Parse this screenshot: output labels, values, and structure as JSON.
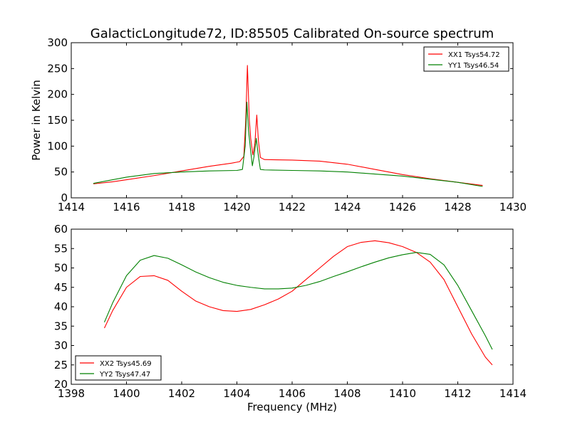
{
  "figure": {
    "title": "GalacticLongitude72, ID:85505 Calibrated On-source spectrum"
  },
  "chart_data": [
    {
      "type": "line",
      "title": "GalacticLongitude72, ID:85505 Calibrated On-source spectrum",
      "xlabel": "",
      "ylabel": "Power in Kelvin",
      "xlim": [
        1414,
        1430
      ],
      "ylim": [
        0,
        300
      ],
      "xticks": [
        1414,
        1416,
        1418,
        1420,
        1422,
        1424,
        1426,
        1428,
        1430
      ],
      "yticks": [
        0,
        50,
        100,
        150,
        200,
        250,
        300
      ],
      "grid": false,
      "legend": "top-right",
      "series": [
        {
          "name": "XX1 Tsys54.72",
          "color": "#ff0000",
          "points": [
            [
              1414.8,
              27
            ],
            [
              1415.5,
              31
            ],
            [
              1416.0,
              35
            ],
            [
              1417.0,
              43
            ],
            [
              1418.0,
              52
            ],
            [
              1419.0,
              61
            ],
            [
              1419.8,
              67
            ],
            [
              1420.1,
              70
            ],
            [
              1420.25,
              80
            ],
            [
              1420.32,
              150
            ],
            [
              1420.38,
              256
            ],
            [
              1420.45,
              150
            ],
            [
              1420.5,
              115
            ],
            [
              1420.58,
              83
            ],
            [
              1420.65,
              105
            ],
            [
              1420.72,
              160
            ],
            [
              1420.78,
              110
            ],
            [
              1420.85,
              78
            ],
            [
              1421.0,
              74
            ],
            [
              1422.0,
              73
            ],
            [
              1423.0,
              71
            ],
            [
              1424.0,
              65
            ],
            [
              1425.0,
              55
            ],
            [
              1426.0,
              45
            ],
            [
              1427.0,
              37
            ],
            [
              1428.0,
              30
            ],
            [
              1428.9,
              24
            ]
          ]
        },
        {
          "name": "YY1 Tsys46.54",
          "color": "#008000",
          "points": [
            [
              1414.8,
              28
            ],
            [
              1415.5,
              35
            ],
            [
              1416.0,
              40
            ],
            [
              1417.0,
              47
            ],
            [
              1418.0,
              50
            ],
            [
              1419.0,
              52
            ],
            [
              1420.0,
              53
            ],
            [
              1420.2,
              55
            ],
            [
              1420.3,
              100
            ],
            [
              1420.36,
              185
            ],
            [
              1420.42,
              130
            ],
            [
              1420.5,
              90
            ],
            [
              1420.56,
              62
            ],
            [
              1420.62,
              80
            ],
            [
              1420.7,
              115
            ],
            [
              1420.78,
              80
            ],
            [
              1420.85,
              55
            ],
            [
              1421.0,
              54
            ],
            [
              1422.0,
              53
            ],
            [
              1423.0,
              52
            ],
            [
              1424.0,
              50
            ],
            [
              1425.0,
              46
            ],
            [
              1426.0,
              42
            ],
            [
              1427.0,
              36
            ],
            [
              1428.0,
              30
            ],
            [
              1428.9,
              22
            ]
          ]
        }
      ]
    },
    {
      "type": "line",
      "title": "",
      "xlabel": "Frequency (MHz)",
      "ylabel": "",
      "xlim": [
        1398,
        1414
      ],
      "ylim": [
        20,
        60
      ],
      "xticks": [
        1398,
        1400,
        1402,
        1404,
        1406,
        1408,
        1410,
        1412,
        1414
      ],
      "yticks": [
        20,
        25,
        30,
        35,
        40,
        45,
        50,
        55,
        60
      ],
      "grid": false,
      "legend": "bottom-left",
      "series": [
        {
          "name": "XX2 Tsys45.69",
          "color": "#ff0000",
          "points": [
            [
              1399.2,
              34.5
            ],
            [
              1399.5,
              39
            ],
            [
              1400.0,
              45
            ],
            [
              1400.5,
              47.8
            ],
            [
              1401.0,
              48
            ],
            [
              1401.5,
              46.8
            ],
            [
              1402.0,
              44
            ],
            [
              1402.5,
              41.5
            ],
            [
              1403.0,
              40
            ],
            [
              1403.5,
              39
            ],
            [
              1404.0,
              38.8
            ],
            [
              1404.5,
              39.3
            ],
            [
              1405.0,
              40.5
            ],
            [
              1405.5,
              42
            ],
            [
              1406.0,
              44
            ],
            [
              1406.5,
              47
            ],
            [
              1407.0,
              50
            ],
            [
              1407.5,
              53
            ],
            [
              1408.0,
              55.5
            ],
            [
              1408.5,
              56.6
            ],
            [
              1409.0,
              57
            ],
            [
              1409.5,
              56.5
            ],
            [
              1410.0,
              55.5
            ],
            [
              1410.5,
              54
            ],
            [
              1411.0,
              51.5
            ],
            [
              1411.5,
              47
            ],
            [
              1412.0,
              40
            ],
            [
              1412.5,
              33
            ],
            [
              1413.0,
              27
            ],
            [
              1413.25,
              25
            ]
          ]
        },
        {
          "name": "YY2 Tsys47.47",
          "color": "#008000",
          "points": [
            [
              1399.2,
              36
            ],
            [
              1399.5,
              41
            ],
            [
              1400.0,
              48
            ],
            [
              1400.5,
              52
            ],
            [
              1401.0,
              53.2
            ],
            [
              1401.5,
              52.5
            ],
            [
              1402.0,
              50.8
            ],
            [
              1402.5,
              49
            ],
            [
              1403.0,
              47.5
            ],
            [
              1403.5,
              46.3
            ],
            [
              1404.0,
              45.5
            ],
            [
              1404.5,
              45
            ],
            [
              1405.0,
              44.6
            ],
            [
              1405.5,
              44.6
            ],
            [
              1406.0,
              44.8
            ],
            [
              1406.5,
              45.5
            ],
            [
              1407.0,
              46.5
            ],
            [
              1407.5,
              47.8
            ],
            [
              1408.0,
              49
            ],
            [
              1408.5,
              50.3
            ],
            [
              1409.0,
              51.5
            ],
            [
              1409.5,
              52.6
            ],
            [
              1410.0,
              53.4
            ],
            [
              1410.5,
              54
            ],
            [
              1411.0,
              53.5
            ],
            [
              1411.5,
              50.8
            ],
            [
              1412.0,
              45.5
            ],
            [
              1412.5,
              39
            ],
            [
              1413.0,
              32.5
            ],
            [
              1413.25,
              29
            ]
          ]
        }
      ]
    }
  ]
}
